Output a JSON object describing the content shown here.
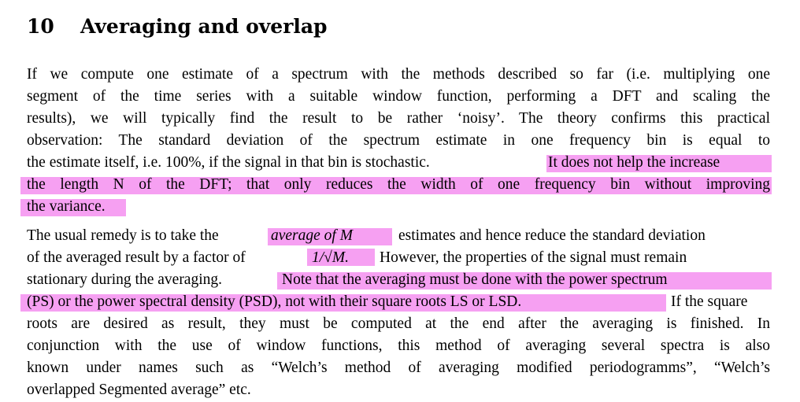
{
  "section": {
    "number": "10",
    "title": "Averaging and overlap"
  },
  "paragraph1": {
    "line1": "If we compute one estimate of a spectrum with the methods described so far (i.e. multiplying one",
    "line2": "segment of the time series with a suitable window function, performing a DFT and scaling the",
    "line3": "results), we will typically find the result to be rather ‘noisy’. The theory confirms this practical",
    "line4": "observation: The standard deviation of the spectrum estimate in one frequency bin is equal to",
    "line5_plain": "the estimate itself, i.e. 100%, if the signal in that bin is stochastic.",
    "line5_highlight": "It does not help the increase",
    "line6": "the length N of the DFT; that only reduces the width of one frequency bin without improving",
    "line7": "the variance."
  },
  "paragraph2": {
    "line1_a": "The usual remedy is to take the",
    "line1_hl": "average of M",
    "line1_b": "estimates and hence reduce the standard deviation",
    "line2_a": "of the averaged result by a factor of",
    "line2_hl": "1/√M.",
    "line2_b": "However, the properties of the signal must remain",
    "line3_a": "stationary during the averaging.",
    "line3_hl": "Note that the averaging must be done with the power spectrum",
    "line4_hl": "(PS) or the power spectral density (PSD), not with their square roots LS or LSD.",
    "line4_b": "If the square",
    "line5": "roots are desired as result, they must be computed at the end after the averaging is finished. In",
    "line6": "conjunction with the use of window functions, this method of averaging several spectra is also",
    "line7": "known under names such as “Welch’s method of averaging modified periodogramms”, “Welch’s",
    "line8": "overlapped Segmented average” etc."
  },
  "highlight_color": "#f6a0f2"
}
